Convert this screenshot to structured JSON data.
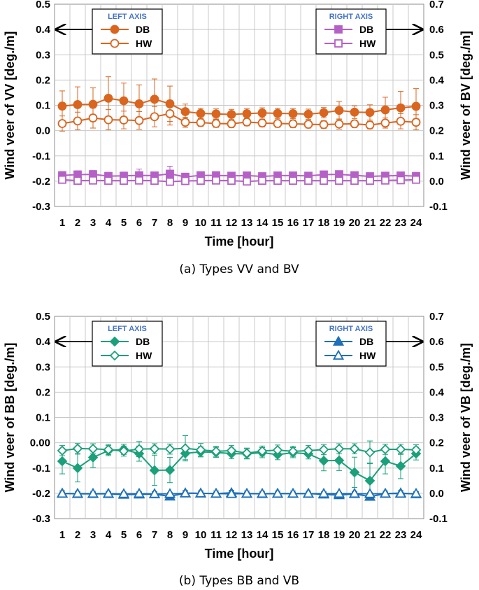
{
  "chart_data": [
    {
      "type": "line",
      "caption": "(a)  Types VV and BV",
      "xlabel": "Time [hour]",
      "ylabel_left": "Wind veer of VV [deg./m]",
      "ylabel_right": "Wind veer of BV [deg./m]",
      "x": [
        1,
        2,
        3,
        4,
        5,
        6,
        7,
        8,
        9,
        10,
        11,
        12,
        13,
        14,
        15,
        16,
        17,
        18,
        19,
        20,
        21,
        22,
        23,
        24
      ],
      "ylim_left": [
        -0.3,
        0.5
      ],
      "ylim_right": [
        -0.1,
        0.7
      ],
      "yticks_left": [
        "0.5",
        "0.4",
        "0.3",
        "0.2",
        "0.1",
        "0.0",
        "-0.1",
        "-0.2",
        "-0.3"
      ],
      "yticks_right": [
        "0.7",
        "0.6",
        "0.5",
        "0.4",
        "0.3",
        "0.2",
        "0.1",
        "0.0",
        "-0.1"
      ],
      "legend_left": {
        "heading": "LEFT AXIS",
        "items": [
          "DB",
          "HW"
        ]
      },
      "legend_right": {
        "heading": "RIGHT AXIS",
        "items": [
          "DB",
          "HW"
        ]
      },
      "series": [
        {
          "name": "DB",
          "axis": "left",
          "marker": "circle",
          "filled": true,
          "color": "#d9651f",
          "values": [
            0.097,
            0.103,
            0.104,
            0.128,
            0.118,
            0.106,
            0.124,
            0.106,
            0.075,
            0.068,
            0.066,
            0.064,
            0.067,
            0.07,
            0.068,
            0.067,
            0.065,
            0.071,
            0.08,
            0.073,
            0.072,
            0.082,
            0.09,
            0.096
          ],
          "err": [
            0.06,
            0.07,
            0.065,
            0.085,
            0.07,
            0.075,
            0.08,
            0.07,
            0.03,
            0.02,
            0.02,
            0.02,
            0.02,
            0.02,
            0.02,
            0.02,
            0.02,
            0.02,
            0.035,
            0.025,
            0.03,
            0.05,
            0.065,
            0.07
          ]
        },
        {
          "name": "HW",
          "axis": "left",
          "marker": "circle",
          "filled": false,
          "color": "#d9651f",
          "values": [
            0.028,
            0.038,
            0.05,
            0.043,
            0.042,
            0.04,
            0.055,
            0.067,
            0.033,
            0.032,
            0.028,
            0.027,
            0.034,
            0.03,
            0.028,
            0.027,
            0.025,
            0.024,
            0.026,
            0.027,
            0.022,
            0.03,
            0.037,
            0.033
          ],
          "err": [
            0.03,
            0.035,
            0.04,
            0.04,
            0.035,
            0.035,
            0.04,
            0.045,
            0.02,
            0.015,
            0.015,
            0.015,
            0.015,
            0.015,
            0.015,
            0.015,
            0.015,
            0.015,
            0.02,
            0.015,
            0.015,
            0.02,
            0.03,
            0.03
          ]
        },
        {
          "name": "DB",
          "axis": "right",
          "marker": "square",
          "filled": true,
          "color": "#b560c6",
          "values": [
            0.023,
            0.026,
            0.027,
            0.02,
            0.021,
            0.023,
            0.022,
            0.029,
            0.017,
            0.023,
            0.023,
            0.021,
            0.022,
            0.019,
            0.022,
            0.022,
            0.021,
            0.026,
            0.027,
            0.023,
            0.019,
            0.021,
            0.022,
            0.02
          ],
          "err": [
            0.015,
            0.015,
            0.015,
            0.015,
            0.015,
            0.025,
            0.015,
            0.03,
            0.01,
            0.01,
            0.01,
            0.01,
            0.01,
            0.01,
            0.01,
            0.01,
            0.01,
            0.01,
            0.01,
            0.01,
            0.01,
            0.01,
            0.01,
            0.01
          ]
        },
        {
          "name": "HW",
          "axis": "right",
          "marker": "square",
          "filled": false,
          "color": "#b560c6",
          "values": [
            0.006,
            0.002,
            0.003,
            0.002,
            0.002,
            0.003,
            0.002,
            -0.002,
            0.001,
            0.002,
            0.003,
            0.002,
            -0.001,
            0.002,
            0.002,
            0.002,
            0.002,
            0.002,
            0.002,
            0.002,
            0.002,
            0.003,
            0.004,
            0.006
          ],
          "err": [
            0.01,
            0.01,
            0.01,
            0.01,
            0.01,
            0.01,
            0.01,
            0.01,
            0.01,
            0.01,
            0.01,
            0.01,
            0.01,
            0.01,
            0.01,
            0.01,
            0.01,
            0.01,
            0.01,
            0.01,
            0.01,
            0.01,
            0.01,
            0.01
          ]
        }
      ]
    },
    {
      "type": "line",
      "caption": "(b)  Types BB and VB",
      "xlabel": "Time [hour]",
      "ylabel_left": "Wind veer of BB [deg./m]",
      "ylabel_right": "Wind veer of VB [deg./m]",
      "x": [
        1,
        2,
        3,
        4,
        5,
        6,
        7,
        8,
        9,
        10,
        11,
        12,
        13,
        14,
        15,
        16,
        17,
        18,
        19,
        20,
        21,
        22,
        23,
        24
      ],
      "ylim_left": [
        -0.3,
        0.5
      ],
      "ylim_right": [
        -0.1,
        0.7
      ],
      "yticks_left": [
        "0.5",
        "0.4",
        "0.3",
        "0.2",
        "0.1",
        "0.00",
        "-0.1",
        "-0.2",
        "-0.3"
      ],
      "yticks_right": [
        "0.7",
        "0.6",
        "0.5",
        "0.4",
        "0.3",
        "0.2",
        "0.1",
        "0.0",
        "-0.1"
      ],
      "legend_left": {
        "heading": "LEFT AXIS",
        "items": [
          "DB",
          "HW"
        ]
      },
      "legend_right": {
        "heading": "RIGHT AXIS",
        "items": [
          "DB",
          "HW"
        ]
      },
      "series": [
        {
          "name": "DB",
          "axis": "left",
          "marker": "diamond",
          "filled": true,
          "color": "#1aa07a",
          "values": [
            -0.073,
            -0.1,
            -0.058,
            -0.031,
            -0.026,
            -0.043,
            -0.109,
            -0.108,
            -0.042,
            -0.036,
            -0.038,
            -0.043,
            -0.044,
            -0.039,
            -0.047,
            -0.039,
            -0.044,
            -0.071,
            -0.07,
            -0.117,
            -0.15,
            -0.073,
            -0.092,
            -0.043
          ],
          "err": [
            0.05,
            0.055,
            0.04,
            0.02,
            0.02,
            0.03,
            0.06,
            0.05,
            0.025,
            0.02,
            0.02,
            0.02,
            0.02,
            0.02,
            0.02,
            0.02,
            0.02,
            0.04,
            0.04,
            0.06,
            0.07,
            0.05,
            0.05,
            0.025
          ]
        },
        {
          "name": "HW",
          "axis": "left",
          "marker": "diamond",
          "filled": false,
          "color": "#1aa07a",
          "values": [
            -0.031,
            -0.023,
            -0.024,
            -0.027,
            -0.033,
            -0.025,
            -0.024,
            -0.025,
            -0.022,
            -0.028,
            -0.034,
            -0.031,
            -0.041,
            -0.033,
            -0.029,
            -0.034,
            -0.031,
            -0.027,
            -0.024,
            -0.024,
            -0.038,
            -0.026,
            -0.026,
            -0.028
          ],
          "err": [
            0.02,
            0.02,
            0.02,
            0.02,
            0.02,
            0.03,
            0.02,
            0.02,
            0.05,
            0.025,
            0.02,
            0.02,
            0.02,
            0.02,
            0.02,
            0.02,
            0.02,
            0.02,
            0.02,
            0.02,
            0.045,
            0.02,
            0.02,
            0.02
          ]
        },
        {
          "name": "DB",
          "axis": "right",
          "marker": "triangle",
          "filled": true,
          "color": "#1f70b8",
          "values": [
            0.0,
            -0.002,
            -0.002,
            -0.002,
            -0.005,
            -0.004,
            -0.003,
            -0.012,
            0.001,
            0.0,
            -0.001,
            0.002,
            -0.001,
            -0.002,
            -0.001,
            -0.001,
            -0.001,
            -0.004,
            -0.007,
            -0.002,
            -0.013,
            -0.001,
            0.001,
            -0.003
          ],
          "err": [
            0.01,
            0.01,
            0.01,
            0.01,
            0.01,
            0.01,
            0.01,
            0.01,
            0.01,
            0.01,
            0.01,
            0.01,
            0.01,
            0.01,
            0.01,
            0.01,
            0.01,
            0.01,
            0.01,
            0.01,
            0.01,
            0.01,
            0.01,
            0.01
          ]
        },
        {
          "name": "HW",
          "axis": "right",
          "marker": "triangle",
          "filled": false,
          "color": "#1f70b8",
          "values": [
            -0.001,
            -0.001,
            -0.001,
            -0.001,
            -0.002,
            -0.001,
            -0.002,
            -0.002,
            0.0,
            0.0,
            -0.001,
            -0.002,
            -0.001,
            -0.001,
            -0.001,
            -0.001,
            -0.001,
            -0.001,
            -0.001,
            -0.001,
            -0.002,
            -0.001,
            -0.001,
            -0.001
          ],
          "err": [
            0.005,
            0.005,
            0.005,
            0.005,
            0.005,
            0.005,
            0.005,
            0.005,
            0.005,
            0.005,
            0.005,
            0.005,
            0.005,
            0.005,
            0.005,
            0.005,
            0.005,
            0.005,
            0.005,
            0.005,
            0.005,
            0.005,
            0.005,
            0.005
          ]
        }
      ]
    }
  ]
}
